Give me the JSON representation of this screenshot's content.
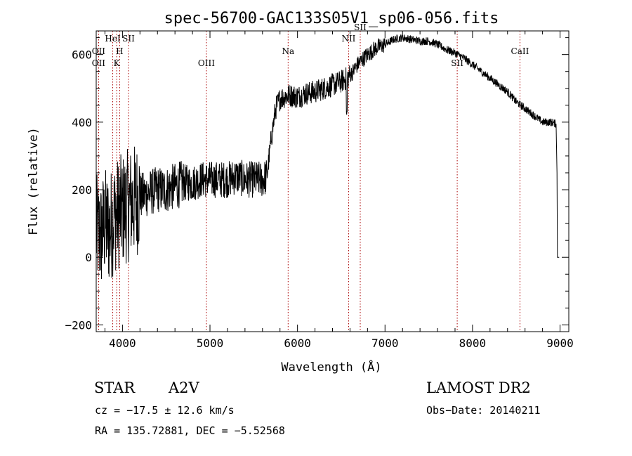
{
  "chart_data": {
    "type": "line",
    "title": "spec-56700-GAC133S05V1_sp06-056.fits",
    "xlabel": "Wavelength (Å)",
    "ylabel": "Flux (relative)",
    "xlim": [
      3700,
      9100
    ],
    "ylim": [
      -220,
      670
    ],
    "xticks": [
      4000,
      5000,
      6000,
      7000,
      8000,
      9000
    ],
    "yticks": [
      -200,
      0,
      200,
      400,
      600
    ],
    "grid": false,
    "line_color": "#000000",
    "marker_color": "#aa0000",
    "series": [
      {
        "x": [
          3700,
          3750,
          3800,
          3850,
          3900,
          3950,
          4000,
          4050,
          4100,
          4150,
          4200,
          4300,
          4400,
          4500,
          4600,
          4700,
          4800,
          4900,
          5000,
          5100,
          5200,
          5300,
          5400,
          5500,
          5600,
          5650,
          5700,
          5750,
          5800,
          5900,
          6000,
          6100,
          6200,
          6300,
          6400,
          6500,
          6560,
          6620,
          6700,
          6800,
          6900,
          7000,
          7100,
          7200,
          7300,
          7400,
          7500,
          7600,
          7700,
          7800,
          7900,
          8000,
          8100,
          8200,
          8300,
          8400,
          8500,
          8600,
          8700,
          8800,
          8900,
          8950
        ],
        "y": [
          80,
          60,
          100,
          80,
          120,
          130,
          140,
          150,
          160,
          170,
          180,
          190,
          200,
          200,
          210,
          220,
          220,
          230,
          230,
          230,
          230,
          240,
          230,
          230,
          230,
          240,
          350,
          440,
          470,
          480,
          475,
          485,
          490,
          500,
          510,
          520,
          530,
          545,
          575,
          600,
          620,
          630,
          645,
          650,
          645,
          640,
          640,
          630,
          615,
          605,
          590,
          570,
          550,
          530,
          510,
          490,
          460,
          440,
          420,
          400,
          400,
          395
        ]
      }
    ],
    "lines": [
      {
        "label": "OII",
        "x": 3727,
        "row": 1
      },
      {
        "label": "OII",
        "x": 3727,
        "row": 2
      },
      {
        "label": "HeI",
        "x": 3889,
        "row": 0
      },
      {
        "label": "H",
        "x": 3968,
        "row": 1
      },
      {
        "label": "K",
        "x": 3934,
        "row": 2
      },
      {
        "label": "SII",
        "x": 4069,
        "row": 0
      },
      {
        "label": "OIII",
        "x": 4959,
        "row": 2
      },
      {
        "label": "Na",
        "x": 5893,
        "row": 1
      },
      {
        "label": "NII",
        "x": 6584,
        "row": 0
      },
      {
        "label": "SII",
        "x": 6717,
        "row": -1
      },
      {
        "label": "SII",
        "x": 7825,
        "row": 2
      },
      {
        "label": "CaII",
        "x": 8542,
        "row": 1
      }
    ]
  },
  "info": {
    "object_type": "STAR",
    "subclass": "A2V",
    "survey": "LAMOST DR2",
    "cz": "cz = −17.5 ± 12.6 km/s",
    "obs_date": "Obs−Date: 20140211",
    "coords": "RA = 135.72881, DEC =  −5.52568"
  }
}
